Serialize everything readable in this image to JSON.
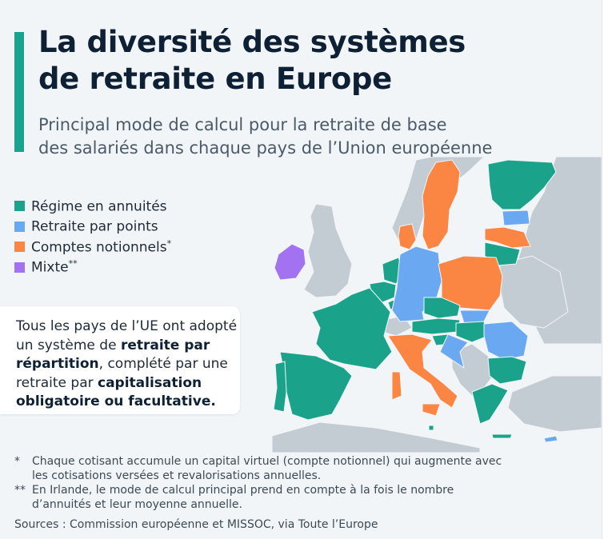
{
  "title_line1": "La diversité des systèmes",
  "title_line2": "de retraite en Europe",
  "subtitle_line1": "Principal mode de calcul pour la retraite de base",
  "subtitle_line2": "des salariés dans chaque pays de l’Union européenne",
  "colors": {
    "annuites": "#1aa38a",
    "points": "#6aa9f2",
    "notionnels": "#fb8542",
    "mixte": "#a372f0",
    "non_ue": "#c4ccd3",
    "sea": "#f2f5f8",
    "accent": "#1aa38a"
  },
  "legend": [
    {
      "label": "Régime en annuités",
      "color": "#1aa38a",
      "mark": ""
    },
    {
      "label": "Retraite par points",
      "color": "#6aa9f2",
      "mark": ""
    },
    {
      "label": "Comptes notionnels",
      "color": "#fb8542",
      "mark": "*"
    },
    {
      "label": "Mixte",
      "color": "#a372f0",
      "mark": "**"
    }
  ],
  "info": {
    "t1": "Tous les pays de l’UE ont adopté un système de ",
    "b1": "retraite par répartition",
    "t2": ", complété par une retraite par ",
    "b2": "capitalisation obligatoire ou facultative."
  },
  "footnotes": [
    {
      "mark": "*",
      "text": "Chaque cotisant accumule un capital virtuel (compte notionnel) qui augmente avec les cotisations versées et revalorisations annuelles."
    },
    {
      "mark": "**",
      "text": "En Irlande, le mode de calcul principal prend en compte à la fois le nombre d’annuités et leur moyenne annuelle."
    }
  ],
  "sources": "Sources : Commission européenne et MISSOC, via Toute l’Europe",
  "map_regions": [
    {
      "name": "Finlande",
      "category": "annuites"
    },
    {
      "name": "Suède",
      "category": "notionnels"
    },
    {
      "name": "Estonie",
      "category": "points"
    },
    {
      "name": "Lettonie",
      "category": "notionnels"
    },
    {
      "name": "Lituanie",
      "category": "annuites"
    },
    {
      "name": "Danemark",
      "category": "notionnels"
    },
    {
      "name": "Irlande",
      "category": "mixte"
    },
    {
      "name": "Pays-Bas",
      "category": "annuites"
    },
    {
      "name": "Belgique",
      "category": "annuites"
    },
    {
      "name": "Luxembourg",
      "category": "annuites"
    },
    {
      "name": "Allemagne",
      "category": "points"
    },
    {
      "name": "Pologne",
      "category": "notionnels"
    },
    {
      "name": "France",
      "category": "annuites"
    },
    {
      "name": "Espagne",
      "category": "annuites"
    },
    {
      "name": "Portugal",
      "category": "annuites"
    },
    {
      "name": "Tchéquie",
      "category": "annuites"
    },
    {
      "name": "Slovaquie",
      "category": "points"
    },
    {
      "name": "Autriche",
      "category": "annuites"
    },
    {
      "name": "Hongrie",
      "category": "annuites"
    },
    {
      "name": "Slovénie",
      "category": "annuites"
    },
    {
      "name": "Croatie",
      "category": "points"
    },
    {
      "name": "Roumanie",
      "category": "points"
    },
    {
      "name": "Bulgarie",
      "category": "annuites"
    },
    {
      "name": "Italie",
      "category": "notionnels"
    },
    {
      "name": "Grèce",
      "category": "annuites"
    },
    {
      "name": "Malte",
      "category": "annuites"
    },
    {
      "name": "Chypre",
      "category": "points"
    }
  ]
}
